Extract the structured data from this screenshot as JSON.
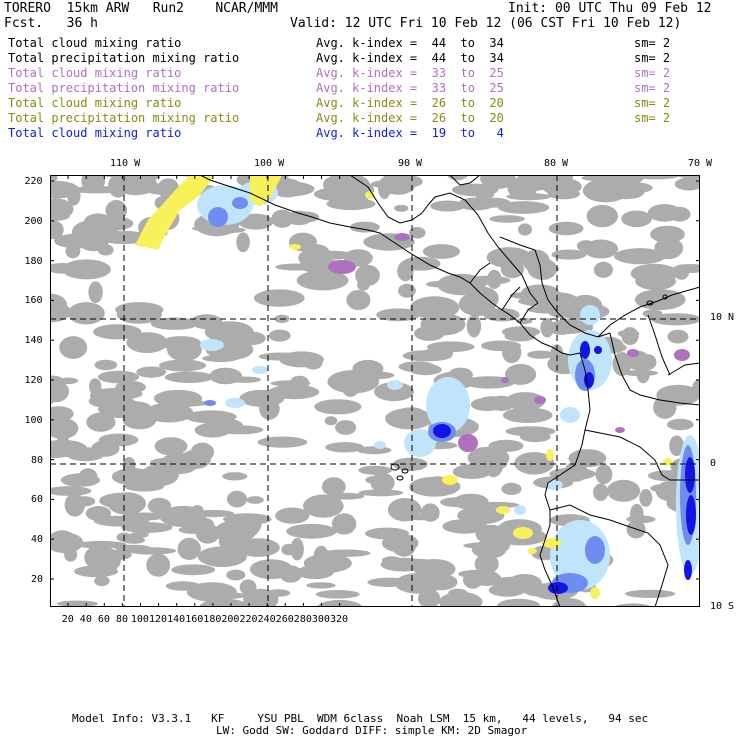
{
  "header": {
    "model": "TORERO  15km ARW   Run2    NCAR/MMM",
    "init": "Init: 00 UTC Thu 09 Feb 12",
    "fcst": "Fcst.   36 h",
    "valid": "Valid: 12 UTC Fri 10 Feb 12 (06 CST Fri 10 Feb 12)"
  },
  "legend_rows": [
    {
      "field": "Total cloud mixing ratio",
      "kidx": "Avg. k-index =  44  to  34",
      "sm": "sm= 2",
      "color": "#000000"
    },
    {
      "field": "Total precipitation mixing ratio",
      "kidx": "Avg. k-index =  44  to  34",
      "sm": "sm= 2",
      "color": "#000000"
    },
    {
      "field": "Total cloud mixing ratio",
      "kidx": "Avg. k-index =  33  to  25",
      "sm": "sm= 2",
      "color": "#b070c0"
    },
    {
      "field": "Total precipitation mixing ratio",
      "kidx": "Avg. k-index =  33  to  25",
      "sm": "sm= 2",
      "color": "#b070c0"
    },
    {
      "field": "Total cloud mixing ratio",
      "kidx": "Avg. k-index =  26  to  20",
      "sm": "sm= 2",
      "color": "#8a8a10"
    },
    {
      "field": "Total precipitation mixing ratio",
      "kidx": "Avg. k-index =  26  to  20",
      "sm": "sm= 2",
      "color": "#8a8a10"
    },
    {
      "field": "Total cloud mixing ratio",
      "kidx": "Avg. k-index =  19  to   4",
      "sm": "",
      "color": "#1020e0"
    }
  ],
  "top_lon_labels": [
    "110 W",
    "100 W",
    "90 W",
    "80 W",
    "70 W"
  ],
  "right_lat_labels": [
    "10 N",
    "0",
    "10 S"
  ],
  "x_ticks": [
    "20",
    "40",
    "60",
    "80",
    "100",
    "120",
    "140",
    "160",
    "180",
    "200",
    "220",
    "240",
    "260",
    "280",
    "300",
    "320"
  ],
  "y_ticks": [
    "220",
    "200",
    "180",
    "160",
    "140",
    "120",
    "100",
    "80",
    "60",
    "40",
    "20"
  ],
  "footer": {
    "line1": "Model Info: V3.3.1   KF     YSU PBL  WDM 6class  Noah LSM  15 km,   44 levels,   94 sec",
    "line2": "LW: Godd SW: Goddard DIFF: simple KM: 2D Smagor"
  },
  "colors": {
    "gray_cloud": "#a8a8a8",
    "light_blue": "#bfe4fb",
    "mid_blue": "#6f8cf0",
    "dark_blue": "#1414e6",
    "violet": "#b070c0",
    "yellow": "#f8f25a"
  }
}
